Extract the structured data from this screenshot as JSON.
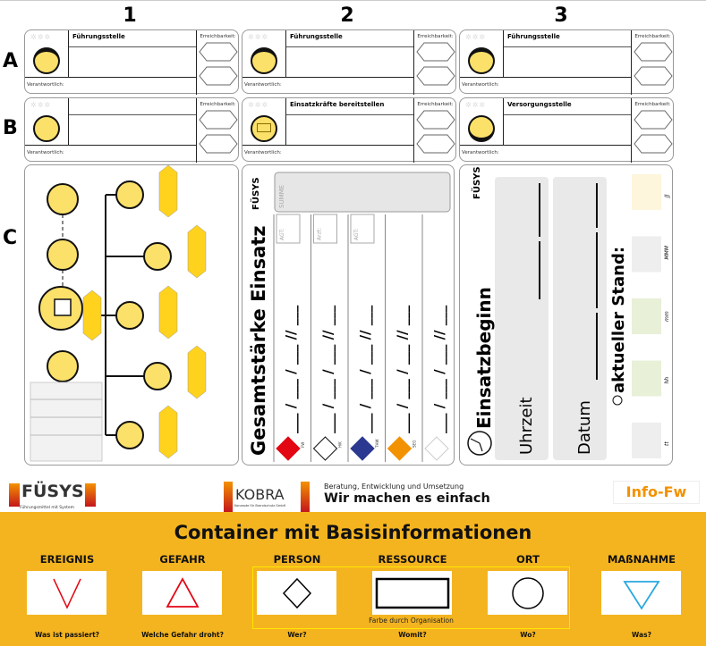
{
  "columns": [
    "1",
    "2",
    "3"
  ],
  "rows": [
    "A",
    "B",
    "C"
  ],
  "cards": [
    {
      "title": "Führungsstelle",
      "responsible_label": "Verantwortlich:",
      "reach_label": "Erreichbarkeit:"
    },
    {
      "title": "Führungsstelle",
      "responsible_label": "Verantwortlich:",
      "reach_label": "Erreichbarkeit:"
    },
    {
      "title": "Führungsstelle",
      "responsible_label": "Verantwortlich:",
      "reach_label": "Erreichbarkeit:"
    },
    {
      "title": "",
      "responsible_label": "Verantwortlich:",
      "reach_label": "Erreichbarkeit:"
    },
    {
      "title": "Einsatzkräfte bereitstellen",
      "responsible_label": "Verantwortlich:",
      "reach_label": "Erreichbarkeit:"
    },
    {
      "title": "Versorgungsstelle",
      "responsible_label": "Verantwortlich:",
      "reach_label": "Erreichbarkeit:"
    }
  ],
  "strength_panel": {
    "title": "Gesamtstärke Einsatz",
    "sum_placeholder": "SUMME",
    "pattern": "___ / ___ / ___ // ___",
    "columns": [
      {
        "label": "FW",
        "box": "AGT:",
        "color": "#E30613"
      },
      {
        "label": "HiK",
        "box": "Arzt:",
        "color": "#FFFFFF"
      },
      {
        "label": "THW",
        "box": "AGT:",
        "color": "#2B3990"
      },
      {
        "label": "SEG",
        "box": "",
        "color": "#F39200"
      },
      {
        "label": "",
        "box": "",
        "color": "#FFFFFF"
      }
    ]
  },
  "time_panel": {
    "title": "Einsatzbeginn",
    "time_label": "Uhrzeit",
    "date_label": "Datum",
    "status_label": "aktueller Stand:",
    "fields": [
      {
        "label": "JJ",
        "color": "#FDF5DC"
      },
      {
        "label": "MMM",
        "color": "#EEEEEE"
      },
      {
        "label": "mm",
        "color": "#E8F0D8"
      },
      {
        "label": "hh",
        "color": "#E8F0D8"
      },
      {
        "label": "tt",
        "color": "#EEEEEE"
      }
    ]
  },
  "logos": {
    "fuesys": "FÜSYS",
    "fuesys_sub": "Führungsmittel mit System",
    "kobra": "KOBRA",
    "kobra_sub": "Konzepte für Brandschutz GmbH",
    "tagline_small": "Beratung, Entwicklung und Umsetzung",
    "tagline_big": "Wir machen es einfach",
    "info_badge": "Info-Fw"
  },
  "container": {
    "title": "Container mit Basisinformationen",
    "org_note": "Farbe durch Organisation",
    "band_color": "#F4B41F",
    "items": [
      {
        "label": "EREIGNIS",
        "question": "Was ist passiert?",
        "symbol": "open-v",
        "color": "#E30613"
      },
      {
        "label": "GEFAHR",
        "question": "Welche Gefahr droht?",
        "symbol": "triangle",
        "color": "#E30613"
      },
      {
        "label": "PERSON",
        "question": "Wer?",
        "symbol": "diamond",
        "color": "#000000"
      },
      {
        "label": "RESSOURCE",
        "question": "Womit?",
        "symbol": "rectangle",
        "color": "#000000"
      },
      {
        "label": "ORT",
        "question": "Wo?",
        "symbol": "circle",
        "color": "#000000"
      },
      {
        "label": "MAßNAHME",
        "question": "Was?",
        "symbol": "inverted-triangle",
        "color": "#29A8E0"
      }
    ]
  }
}
